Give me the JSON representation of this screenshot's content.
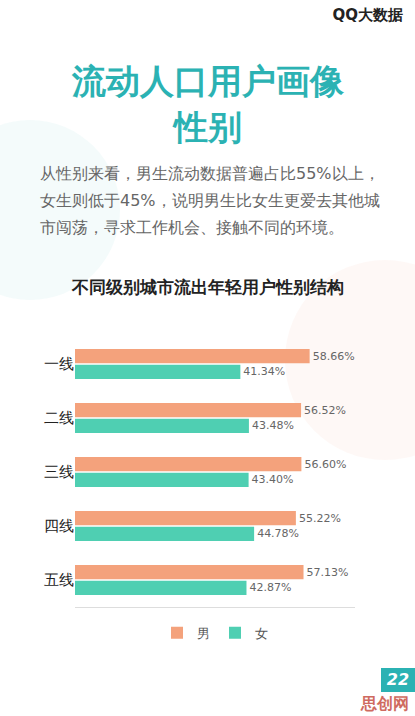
{
  "page": {
    "logo": "QQ大数据",
    "heading": [
      "流动人口用户画像",
      "性别"
    ],
    "description": "从性别来看，男生流动数据普遍占比55%以上，女生则低于45%，说明男生比女生更爱去其他城市闯荡，寻求工作机会、接触不同的环境。",
    "page_number": "22",
    "watermark": "思创网"
  },
  "chart_data": {
    "type": "bar",
    "orientation": "horizontal",
    "title": "不同级别城市流出年轻用户性别结构",
    "categories": [
      "一线",
      "二线",
      "三线",
      "四线",
      "五线"
    ],
    "series": [
      {
        "name": "男",
        "color": "#f4a27c",
        "values": [
          58.66,
          56.52,
          56.6,
          55.22,
          57.13
        ],
        "value_labels": [
          "58.66%",
          "56.52%",
          "56.60%",
          "55.22%",
          "57.13%"
        ]
      },
      {
        "name": "女",
        "color": "#4fcfb2",
        "values": [
          41.34,
          43.48,
          43.4,
          44.78,
          42.87
        ],
        "value_labels": [
          "41.34%",
          "43.48%",
          "43.40%",
          "44.78%",
          "42.87%"
        ]
      }
    ],
    "xlim": [
      0,
      70
    ],
    "xticks": [],
    "data_labels": true,
    "tick_labels": "y",
    "legend": "bottom",
    "grid": false
  }
}
